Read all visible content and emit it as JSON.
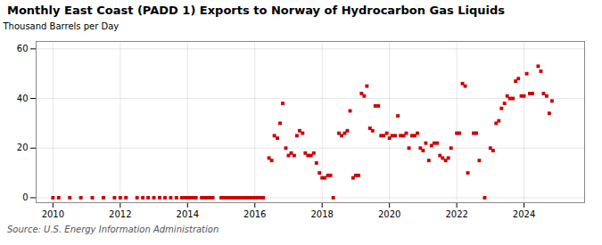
{
  "chart_data": {
    "type": "scatter",
    "title": "Monthly East Coast (PADD 1) Exports to Norway of Hydrocarbon Gas Liquids",
    "ylabel": "Thousand Barrels per Day",
    "source": "Source: U.S. Energy Information Administration",
    "color": "#cc0000",
    "marker": "square",
    "grid": true,
    "xlim": [
      2009.5,
      2025.8
    ],
    "ylim": [
      -2,
      63
    ],
    "xticks": [
      2010,
      2012,
      2014,
      2016,
      2018,
      2020,
      2022,
      2024
    ],
    "yticks": [
      0,
      20,
      40,
      60
    ],
    "x": [
      2010,
      2010.17,
      2010.5,
      2010.83,
      2011.17,
      2011.5,
      2011.83,
      2012,
      2012.17,
      2012.5,
      2012.67,
      2012.83,
      2013,
      2013.17,
      2013.33,
      2013.5,
      2013.67,
      2013.83,
      2013.92,
      2014,
      2014.08,
      2014.17,
      2014.25,
      2014.42,
      2014.5,
      2014.58,
      2014.67,
      2014.75,
      2015,
      2015.08,
      2015.17,
      2015.25,
      2015.33,
      2015.42,
      2015.5,
      2015.58,
      2015.67,
      2015.75,
      2015.83,
      2015.92,
      2016,
      2016.08,
      2016.17,
      2016.25,
      2016.42,
      2016.5,
      2016.58,
      2016.67,
      2016.75,
      2016.83,
      2016.92,
      2017,
      2017.08,
      2017.17,
      2017.25,
      2017.33,
      2017.42,
      2017.5,
      2017.58,
      2017.67,
      2017.75,
      2017.83,
      2017.92,
      2018,
      2018.08,
      2018.17,
      2018.25,
      2018.33,
      2018.5,
      2018.58,
      2018.67,
      2018.75,
      2018.83,
      2018.92,
      2019,
      2019.08,
      2019.17,
      2019.25,
      2019.33,
      2019.42,
      2019.5,
      2019.58,
      2019.67,
      2019.75,
      2019.83,
      2019.92,
      2020,
      2020.08,
      2020.17,
      2020.25,
      2020.33,
      2020.42,
      2020.5,
      2020.58,
      2020.67,
      2020.75,
      2020.83,
      2020.92,
      2021,
      2021.08,
      2021.17,
      2021.25,
      2021.33,
      2021.42,
      2021.5,
      2021.58,
      2021.67,
      2021.75,
      2021.83,
      2022,
      2022.08,
      2022.17,
      2022.25,
      2022.33,
      2022.5,
      2022.58,
      2022.67,
      2022.83,
      2023,
      2023.08,
      2023.17,
      2023.25,
      2023.33,
      2023.42,
      2023.5,
      2023.58,
      2023.67,
      2023.75,
      2023.83,
      2023.92,
      2024,
      2024.08,
      2024.17,
      2024.25,
      2024.42,
      2024.5,
      2024.58,
      2024.67,
      2024.75,
      2024.83
    ],
    "values": [
      0,
      0,
      0,
      0,
      0,
      0,
      0,
      0,
      0,
      0,
      0,
      0,
      0,
      0,
      0,
      0,
      0,
      0,
      0,
      0,
      0,
      0,
      0,
      0,
      0,
      0,
      0,
      0,
      0,
      0,
      0,
      0,
      0,
      0,
      0,
      0,
      0,
      0,
      0,
      0,
      0,
      0,
      0,
      0,
      16,
      15,
      25,
      24,
      30,
      38,
      20,
      17,
      18,
      17,
      25,
      27,
      26,
      18,
      17,
      17,
      18,
      14,
      10,
      8,
      8,
      9,
      9,
      0,
      26,
      25,
      26,
      27,
      35,
      8,
      9,
      9,
      42,
      41,
      45,
      28,
      27,
      37,
      37,
      25,
      25,
      26,
      24,
      25,
      25,
      33,
      25,
      25,
      26,
      20,
      25,
      25,
      26,
      20,
      19,
      22,
      15,
      21,
      22,
      22,
      17,
      16,
      15,
      16,
      20,
      26,
      26,
      46,
      45,
      10,
      26,
      26,
      15,
      0,
      20,
      19,
      30,
      31,
      36,
      38,
      41,
      40,
      40,
      47,
      48,
      41,
      41,
      50,
      42,
      42,
      53,
      51,
      42,
      41,
      34,
      39
    ]
  }
}
